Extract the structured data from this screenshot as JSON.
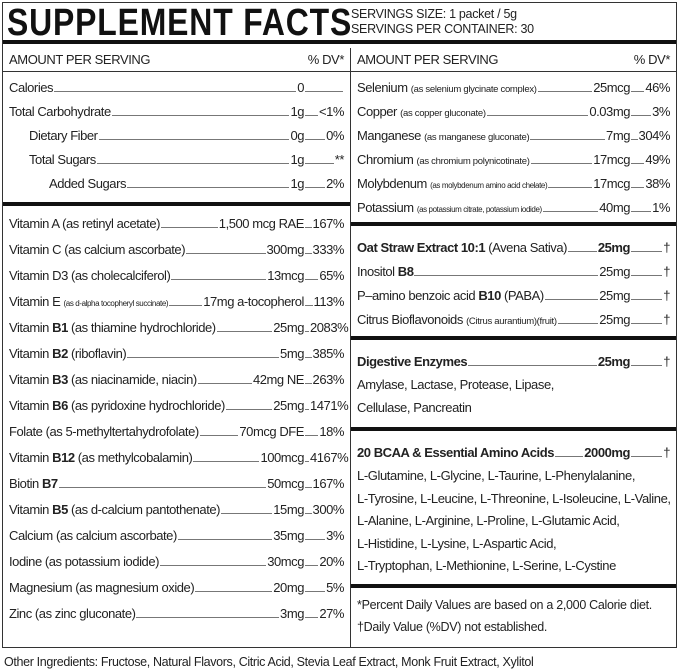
{
  "title": "SUPPLEMENT FACTS",
  "serving_size": "SERVINGS SIZE: 1 packet / 5g",
  "servings_per_container": "SERVINGS PER CONTAINER: 30",
  "left": {
    "header": {
      "amount": "AMOUNT PER SERVING",
      "dv": "% DV*"
    },
    "basics": [
      {
        "indent": 0,
        "parts": [
          {
            "t": "Calories"
          }
        ],
        "amount": "0",
        "dv": ""
      },
      {
        "indent": 0,
        "parts": [
          {
            "t": "Total Carbohydrate"
          }
        ],
        "amount": "1g",
        "dv": "<1%"
      },
      {
        "indent": 1,
        "parts": [
          {
            "t": "Dietary Fiber"
          }
        ],
        "amount": "0g",
        "dv": "0%"
      },
      {
        "indent": 1,
        "parts": [
          {
            "t": "Total Sugars"
          }
        ],
        "amount": "1g",
        "dv": "**"
      },
      {
        "indent": 2,
        "parts": [
          {
            "t": "Added Sugars"
          }
        ],
        "amount": "1g",
        "dv": "2%"
      }
    ],
    "vitamins": [
      {
        "parts": [
          {
            "t": "Vitamin A (as retinyl acetate)"
          }
        ],
        "amount": "1,500 mcg RAE",
        "dv": "167%"
      },
      {
        "parts": [
          {
            "t": "Vitamin C (as calcium ascorbate)"
          }
        ],
        "amount": "300mg",
        "dv": "333%"
      },
      {
        "parts": [
          {
            "t": "Vitamin D3 (as cholecalciferol)"
          }
        ],
        "amount": "13mcg",
        "dv": "65%"
      },
      {
        "parts": [
          {
            "t": "Vitamin E "
          },
          {
            "t": "(as d-alpha tocopheryl succinate)",
            "s": "tiny"
          }
        ],
        "amount": "17mg a-tocopherol",
        "dv": "113%"
      },
      {
        "parts": [
          {
            "t": "Vitamin "
          },
          {
            "t": "B1",
            "s": "bold"
          },
          {
            "t": " (as thiamine hydrochloride)"
          }
        ],
        "amount": "25mg",
        "dv": "2083%"
      },
      {
        "parts": [
          {
            "t": "Vitamin "
          },
          {
            "t": "B2",
            "s": "bold"
          },
          {
            "t": " (riboflavin)"
          }
        ],
        "amount": "5mg",
        "dv": "385%"
      },
      {
        "parts": [
          {
            "t": "Vitamin "
          },
          {
            "t": "B3",
            "s": "bold"
          },
          {
            "t": " (as niacinamide, niacin)"
          }
        ],
        "amount": "42mg NE",
        "dv": "263%"
      },
      {
        "parts": [
          {
            "t": "Vitamin "
          },
          {
            "t": "B6",
            "s": "bold"
          },
          {
            "t": " (as pyridoxine hydrochloride)"
          }
        ],
        "amount": "25mg",
        "dv": "1471%"
      },
      {
        "parts": [
          {
            "t": "Folate (as 5-methyltertahydrofolate)"
          }
        ],
        "amount": "70mcg DFE",
        "dv": "18%"
      },
      {
        "parts": [
          {
            "t": "Vitamin "
          },
          {
            "t": "B12",
            "s": "bold"
          },
          {
            "t": " (as methylcobalamin)"
          }
        ],
        "amount": "100mcg",
        "dv": "4167%"
      },
      {
        "parts": [
          {
            "t": "Biotin "
          },
          {
            "t": "B7",
            "s": "bold"
          }
        ],
        "amount": "50mcg",
        "dv": "167%"
      },
      {
        "parts": [
          {
            "t": "Vitamin "
          },
          {
            "t": "B5",
            "s": "bold"
          },
          {
            "t": " (as d-calcium pantothenate)"
          }
        ],
        "amount": "15mg",
        "dv": "300%"
      },
      {
        "parts": [
          {
            "t": "Calcium (as calcium ascorbate)"
          }
        ],
        "amount": "35mg",
        "dv": "3%"
      },
      {
        "parts": [
          {
            "t": "Iodine (as potassium iodide)"
          }
        ],
        "amount": "30mcg",
        "dv": "20%"
      },
      {
        "parts": [
          {
            "t": "Magnesium (as magnesium oxide)"
          }
        ],
        "amount": "20mg",
        "dv": "5%"
      },
      {
        "parts": [
          {
            "t": "Zinc (as zinc gluconate)"
          }
        ],
        "amount": "3mg",
        "dv": "27%"
      }
    ]
  },
  "right": {
    "header": {
      "amount": "AMOUNT PER SERVING",
      "dv": "% DV*"
    },
    "minerals": [
      {
        "parts": [
          {
            "t": "Selenium "
          },
          {
            "t": "(as selenium glycinate complex)",
            "s": "small"
          }
        ],
        "amount": "25mcg",
        "dv": "46%"
      },
      {
        "parts": [
          {
            "t": "Copper "
          },
          {
            "t": "(as copper gluconate)",
            "s": "small"
          }
        ],
        "amount": "0.03mg",
        "dv": "3%"
      },
      {
        "parts": [
          {
            "t": "Manganese "
          },
          {
            "t": "(as manganese gluconate)",
            "s": "small"
          }
        ],
        "amount": "7mg",
        "dv": "304%"
      },
      {
        "parts": [
          {
            "t": "Chromium "
          },
          {
            "t": "(as chromium polynicotinate)",
            "s": "small"
          }
        ],
        "amount": "17mcg",
        "dv": "49%"
      },
      {
        "parts": [
          {
            "t": "Molybdenum "
          },
          {
            "t": "(as molybdenum amino acid chelate)",
            "s": "tiny"
          }
        ],
        "amount": "17mcg",
        "dv": "38%"
      },
      {
        "parts": [
          {
            "t": "Potassium "
          },
          {
            "t": "(as potassium citrate, potassium iodide)",
            "s": "tiny"
          }
        ],
        "amount": "40mg",
        "dv": "1%"
      }
    ],
    "extracts": [
      {
        "parts": [
          {
            "t": "Oat Straw Extract 10:1",
            "s": "bold"
          },
          {
            "t": " (Avena Sativa)"
          }
        ],
        "amount": "25mg",
        "bold_amount": true,
        "dv": "†"
      },
      {
        "parts": [
          {
            "t": "Inositol "
          },
          {
            "t": "B8",
            "s": "bold"
          }
        ],
        "amount": "25mg",
        "dv": "†"
      },
      {
        "parts": [
          {
            "t": "P–amino benzoic acid "
          },
          {
            "t": "B10",
            "s": "bold"
          },
          {
            "t": " (PABA)"
          }
        ],
        "amount": "25mg",
        "dv": "†"
      },
      {
        "parts": [
          {
            "t": "Citrus Bioflavonoids "
          },
          {
            "t": "(Citrus aurantium)(fruit)",
            "s": "small"
          }
        ],
        "amount": "25mg",
        "dv": "†"
      }
    ],
    "enzymes": {
      "name": "Digestive Enzymes",
      "amount": "25mg",
      "dv": "†",
      "lines": [
        "Amylase, Lactase, Protease, Lipase,",
        "Cellulase, Pancreatin"
      ]
    },
    "amino": {
      "name": "20 BCAA & Essential Amino Acids",
      "amount": "2000mg",
      "dv": "†",
      "lines": [
        "L-Glutamine, L-Glycine, L-Taurine, L-Phenylalanine,",
        "L-Tyrosine, L-Leucine, L-Threonine, L-Isoleucine,  L-Valine,",
        "L-Alanine, L-Arginine, L-Proline, L-Glutamic Acid,",
        "L-Histidine, L-Lysine, L-Aspartic Acid,",
        "L-Tryptophan, L-Methionine, L-Serine, L-Cystine"
      ]
    },
    "footnotes": [
      "*Percent Daily Values are based on a 2,000 Calorie diet.",
      "†Daily Value (%DV) not established."
    ]
  },
  "other_ingredients": "Other Ingredients: Fructose, Natural Flavors, Citric Acid, Stevia Leaf Extract, Monk Fruit Extract, Xylitol"
}
